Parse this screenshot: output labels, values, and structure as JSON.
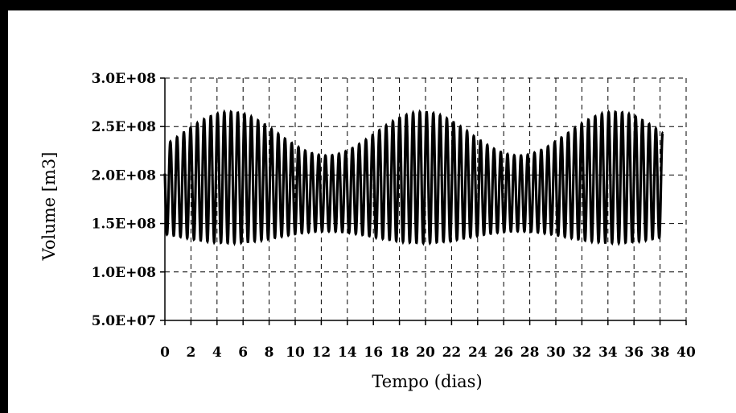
{
  "chart_data": {
    "type": "line",
    "title": "",
    "xlabel": "Tempo (dias)",
    "ylabel": "Volume [m3]",
    "xlim": [
      0,
      40
    ],
    "ylim": [
      50000000,
      300000000
    ],
    "x_ticks": [
      0,
      2,
      4,
      6,
      8,
      10,
      12,
      14,
      16,
      18,
      20,
      22,
      24,
      26,
      28,
      30,
      32,
      34,
      36,
      38,
      40
    ],
    "x_tick_labels": [
      "0",
      "2",
      "4",
      "6",
      "8",
      "10",
      "12",
      "14",
      "16",
      "18",
      "20",
      "22",
      "24",
      "26",
      "28",
      "30",
      "32",
      "34",
      "36",
      "38",
      "40"
    ],
    "y_ticks": [
      50000000,
      100000000,
      150000000,
      200000000,
      250000000,
      300000000
    ],
    "y_tick_labels": [
      "5.0E+07",
      "1.0E+08",
      "1.5E+08",
      "2.0E+08",
      "2.5E+08",
      "3.0E+08"
    ],
    "grid": "dashed",
    "legend": "none",
    "line_color": "#000000",
    "series": [
      {
        "x_start": 0,
        "x_end": 38.2,
        "oscillation_period_days": 0.5175,
        "envelope_period_days": 14.77,
        "peak_day_spring_tide": [
          5,
          20,
          35
        ],
        "max_values_range": [
          220000000,
          265000000
        ],
        "min_values_range": [
          130000000,
          142000000
        ],
        "description_values": {
          "max_at_spring": 265000000,
          "max_at_neap": 220000000,
          "min_at_spring": 130000000,
          "min_at_neap": 142000000
        }
      }
    ]
  }
}
